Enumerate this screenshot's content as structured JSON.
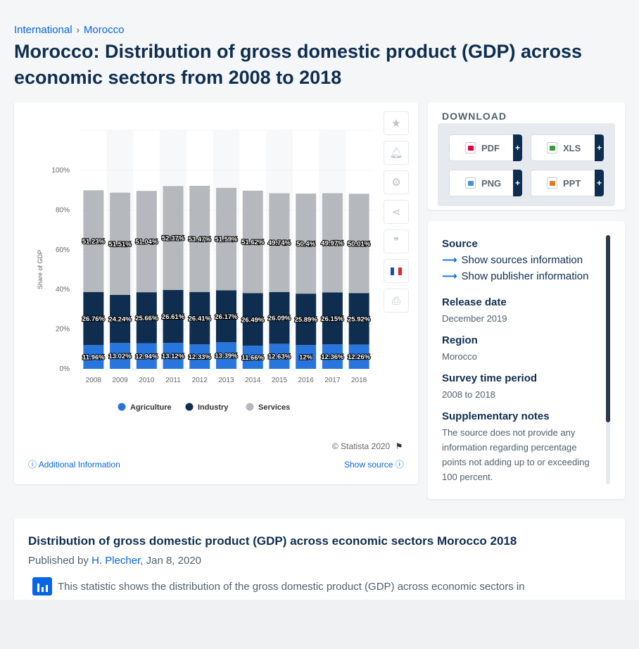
{
  "breadcrumb": {
    "items": [
      "International",
      "Morocco"
    ],
    "separator": "›"
  },
  "page_title": "Morocco: Distribution of gross domestic product (GDP) across economic sectors from 2008 to 2018",
  "chart_footer": {
    "copyright": "© Statista 2020",
    "additional_info": "Additional Information",
    "show_source": "Show source"
  },
  "side_icons": [
    "star-icon",
    "bell-icon",
    "gear-icon",
    "share-icon",
    "quote-icon",
    "flag-fr-icon",
    "print-icon"
  ],
  "download": {
    "title": "DOWNLOAD",
    "buttons": [
      {
        "label": "PDF",
        "icon": "pdf-file-icon",
        "color": "#e2003d"
      },
      {
        "label": "XLS",
        "icon": "xls-file-icon",
        "color": "#3a9a3a"
      },
      {
        "label": "PNG",
        "icon": "png-file-icon",
        "color": "#4a90d6"
      },
      {
        "label": "PPT",
        "icon": "ppt-file-icon",
        "color": "#e27a1f"
      }
    ],
    "plus": "+"
  },
  "info": {
    "source_label": "Source",
    "show_sources": "Show sources information",
    "show_publisher": "Show publisher information",
    "release_label": "Release date",
    "release_value": "December 2019",
    "region_label": "Region",
    "region_value": "Morocco",
    "period_label": "Survey time period",
    "period_value": "2008 to 2018",
    "notes_label": "Supplementary notes",
    "notes_value": "The source does not provide any information regarding percentage points not adding up to or exceeding 100 percent."
  },
  "description": {
    "title": "Distribution of gross domestic product (GDP) across economic sectors Morocco 2018",
    "published_prefix": "Published by",
    "author": "H. Plecher",
    "date": ", Jan 8, 2020",
    "text": "This statistic shows the distribution of the gross domestic product (GDP) across economic sectors in"
  },
  "chart_data": {
    "type": "bar",
    "stacked": true,
    "categories": [
      "2008",
      "2009",
      "2010",
      "2011",
      "2012",
      "2013",
      "2014",
      "2015",
      "2016",
      "2017",
      "2018"
    ],
    "series": [
      {
        "name": "Agriculture",
        "color": "#2876dd",
        "values": [
          11.96,
          13.02,
          12.94,
          13.12,
          12.33,
          13.39,
          11.66,
          12.63,
          12,
          12.36,
          12.26
        ],
        "labels": [
          "11.96%",
          "13.02%",
          "12.94%",
          "13.12%",
          "12.33%",
          "13.39%",
          "11.66%",
          "12.63%",
          "12%",
          "12.36%",
          "12.26%"
        ]
      },
      {
        "name": "Industry",
        "color": "#0f2e4f",
        "values": [
          26.76,
          24.24,
          25.66,
          26.61,
          26.41,
          26.17,
          26.49,
          26.09,
          25.89,
          26.15,
          25.92
        ],
        "labels": [
          "26.76%",
          "24.24%",
          "25.66%",
          "26.61%",
          "26.41%",
          "26.17%",
          "26.49%",
          "26.09%",
          "25.89%",
          "26.15%",
          "25.92%"
        ]
      },
      {
        "name": "Services",
        "color": "#b5b9be",
        "values": [
          51.23,
          51.51,
          51.04,
          52.37,
          53.47,
          51.59,
          51.62,
          49.74,
          50.4,
          49.97,
          50.01
        ],
        "labels": [
          "51.23%",
          "51.51%",
          "51.04%",
          "52.37%",
          "53.47%",
          "51.59%",
          "51.62%",
          "49.74%",
          "50.4%",
          "49.97%",
          "50.01%"
        ]
      }
    ],
    "ylabel": "Share of GDP",
    "yticks": [
      "0%",
      "20%",
      "40%",
      "60%",
      "80%",
      "100%"
    ],
    "ylim": [
      0,
      100
    ],
    "legend_position": "bottom",
    "grid": true
  }
}
